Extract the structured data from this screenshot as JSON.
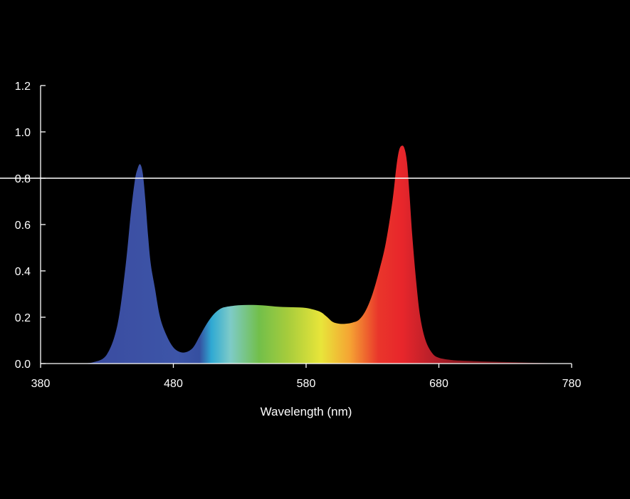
{
  "chart_data": {
    "type": "area",
    "title": "",
    "xlabel": "Wavelength (nm)",
    "ylabel": "",
    "xlim": [
      380,
      780
    ],
    "ylim": [
      0,
      1.2
    ],
    "x_ticks": [
      380,
      480,
      580,
      680,
      780
    ],
    "x_tick_labels": [
      "380",
      "480",
      "580",
      "680",
      "780"
    ],
    "y_ticks": [
      0,
      0.2,
      0.4,
      0.6,
      0.8,
      1.0,
      1.2
    ],
    "y_tick_labels": [
      "0.0",
      "0.2",
      "0.4",
      "0.6",
      "0.8",
      "1.0",
      "1.2"
    ],
    "reference_line": {
      "y": 0.8,
      "color": "#ffffff"
    },
    "grid": false,
    "legend": "none",
    "fill": "visible-spectrum gradient",
    "background": "#000000",
    "series": [
      {
        "x": [
          410,
          420,
          430,
          438,
          444,
          448,
          451,
          453,
          455,
          457,
          459,
          461,
          463,
          466,
          470,
          475,
          480,
          485,
          490,
          495,
          500,
          505,
          510,
          515,
          520,
          530,
          540,
          550,
          560,
          570,
          580,
          590,
          595,
          600,
          605,
          610,
          615,
          620,
          625,
          630,
          635,
          640,
          645,
          648,
          650,
          652,
          654,
          656,
          658,
          660,
          663,
          666,
          670,
          675,
          680,
          690,
          700,
          720,
          740,
          760,
          780
        ],
        "y": [
          0.0,
          0.006,
          0.04,
          0.17,
          0.42,
          0.65,
          0.79,
          0.84,
          0.86,
          0.82,
          0.7,
          0.55,
          0.43,
          0.33,
          0.2,
          0.12,
          0.07,
          0.05,
          0.05,
          0.07,
          0.12,
          0.17,
          0.21,
          0.235,
          0.245,
          0.252,
          0.253,
          0.25,
          0.245,
          0.243,
          0.24,
          0.225,
          0.205,
          0.18,
          0.172,
          0.172,
          0.177,
          0.19,
          0.23,
          0.3,
          0.4,
          0.52,
          0.7,
          0.85,
          0.92,
          0.94,
          0.93,
          0.87,
          0.72,
          0.55,
          0.35,
          0.2,
          0.1,
          0.045,
          0.025,
          0.015,
          0.012,
          0.008,
          0.005,
          0.002,
          0.0
        ]
      }
    ],
    "colors": {
      "axis": "#ffffff",
      "text": "#ffffff",
      "spectrum": [
        "#3a4b9f",
        "#3d55a8",
        "#2fb8d6",
        "#7ecbc8",
        "#8cc63f",
        "#e8e53a",
        "#f39a32",
        "#e8262b",
        "#b8202a",
        "#6b1418"
      ]
    }
  }
}
